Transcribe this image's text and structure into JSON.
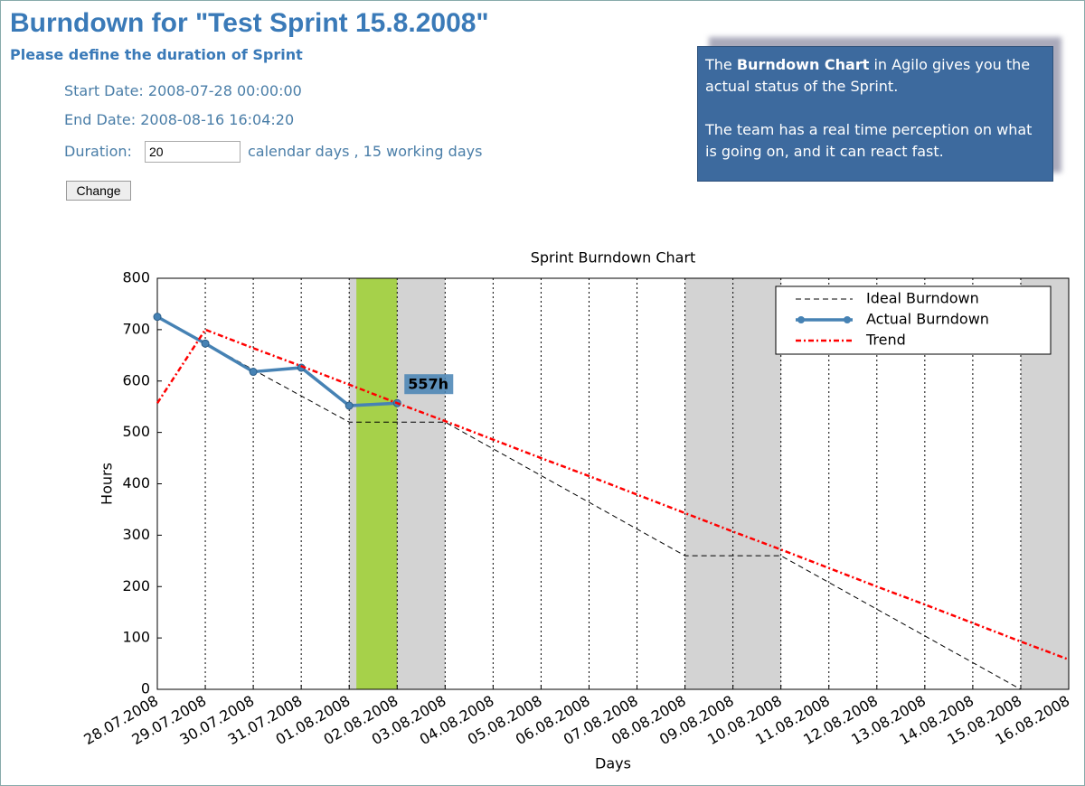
{
  "header": {
    "title": "Burndown for \"Test Sprint 15.8.2008\"",
    "subtitle": "Please define the duration of Sprint"
  },
  "form": {
    "start": "Start Date: 2008-07-28 00:00:00",
    "end": "End Date: 2008-08-16 16:04:20",
    "duration_label": "Duration:",
    "duration_value": "20",
    "duration_note": "calendar days , 15 working days",
    "button": "Change"
  },
  "callout": {
    "p1_start": "The",
    "p1_bold": "Burndown Chart",
    "p1_end": "in Agilo gives you the actual status of the Sprint.",
    "p2": "The team has a real time perception on what is going on, and it can react fast."
  },
  "chart_data": {
    "type": "line",
    "title": "Sprint Burndown Chart",
    "x_label": "Days",
    "y_label": "Hours",
    "categories": [
      "28.07.2008",
      "29.07.2008",
      "30.07.2008",
      "31.07.2008",
      "01.08.2008",
      "02.08.2008",
      "03.08.2008",
      "04.08.2008",
      "05.08.2008",
      "06.08.2008",
      "07.08.2008",
      "08.08.2008",
      "09.08.2008",
      "10.08.2008",
      "11.08.2008",
      "12.08.2008",
      "13.08.2008",
      "14.08.2008",
      "15.08.2008",
      "16.08.2008"
    ],
    "ylim": [
      0,
      800
    ],
    "yticks": [
      0,
      100,
      200,
      300,
      400,
      500,
      600,
      700,
      800
    ],
    "x_grid": true,
    "legend": "upper right",
    "weekend_spans": [
      [
        4,
        6
      ],
      [
        11,
        13
      ],
      [
        18,
        19
      ]
    ],
    "weekend_color": "#d3d3d3",
    "today_span": [
      4.15,
      5
    ],
    "today_color": "#a6d14a",
    "series": [
      {
        "name": "Ideal Burndown",
        "color": "#000000",
        "style": "dashed",
        "values": [
          725,
          674,
          622,
          571,
          520,
          520,
          520,
          468,
          416,
          364,
          312,
          260,
          260,
          260,
          208,
          156,
          104,
          52,
          0,
          null
        ]
      },
      {
        "name": "Actual Burndown",
        "color": "#4682b4",
        "style": "solid-markers",
        "values": [
          725,
          673,
          618,
          626,
          552,
          557,
          null,
          null,
          null,
          null,
          null,
          null,
          null,
          null,
          null,
          null,
          null,
          null,
          null,
          null
        ],
        "value_labels": [
          null,
          null,
          null,
          null,
          null,
          "557h",
          null,
          null,
          null,
          null,
          null,
          null,
          null,
          null,
          null,
          null,
          null,
          null,
          null,
          null
        ]
      },
      {
        "name": "Trend",
        "color": "#ff0000",
        "style": "dashdot",
        "values": [
          557,
          700,
          664,
          629,
          593,
          557,
          522,
          486,
          450,
          415,
          379,
          343,
          307,
          272,
          236,
          200,
          165,
          129,
          93,
          58
        ]
      }
    ]
  }
}
